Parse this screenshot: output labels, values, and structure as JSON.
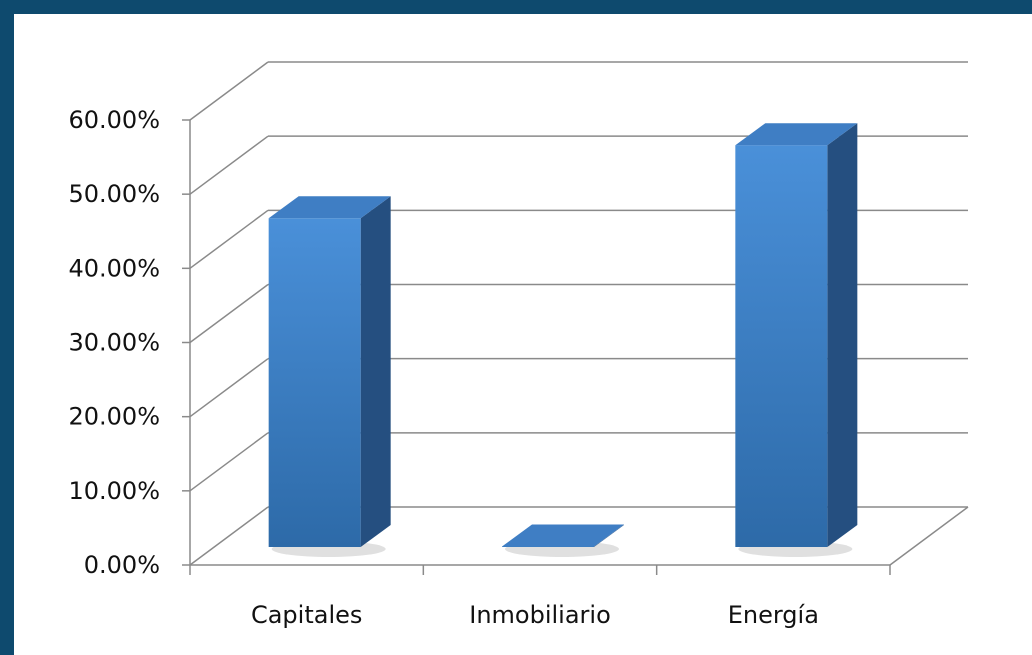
{
  "chart_data": {
    "type": "bar",
    "title": "",
    "xlabel": "",
    "ylabel": "",
    "categories": [
      "Capitales",
      "Inmobiliario",
      "Energía"
    ],
    "values": [
      0.45,
      0.0,
      0.55
    ],
    "ylim": [
      0,
      0.6
    ],
    "yticks": [
      0,
      0.1,
      0.2,
      0.3,
      0.4,
      0.5,
      0.6
    ],
    "ytick_labels": [
      "0.00%",
      "10.00%",
      "20.00%",
      "30.00%",
      "40.00%",
      "50.00%",
      "60.00%"
    ],
    "grid": true,
    "legend": "none",
    "style": "3d-column",
    "colors": {
      "background": "#0e4a6e",
      "plot_background": "#ffffff",
      "bar_front_top": "#4a90d9",
      "bar_front_bottom": "#2d6aa8",
      "bar_side": "#254f80",
      "bar_top": "#3f7ec4",
      "gridline": "#8a8a8a"
    }
  }
}
